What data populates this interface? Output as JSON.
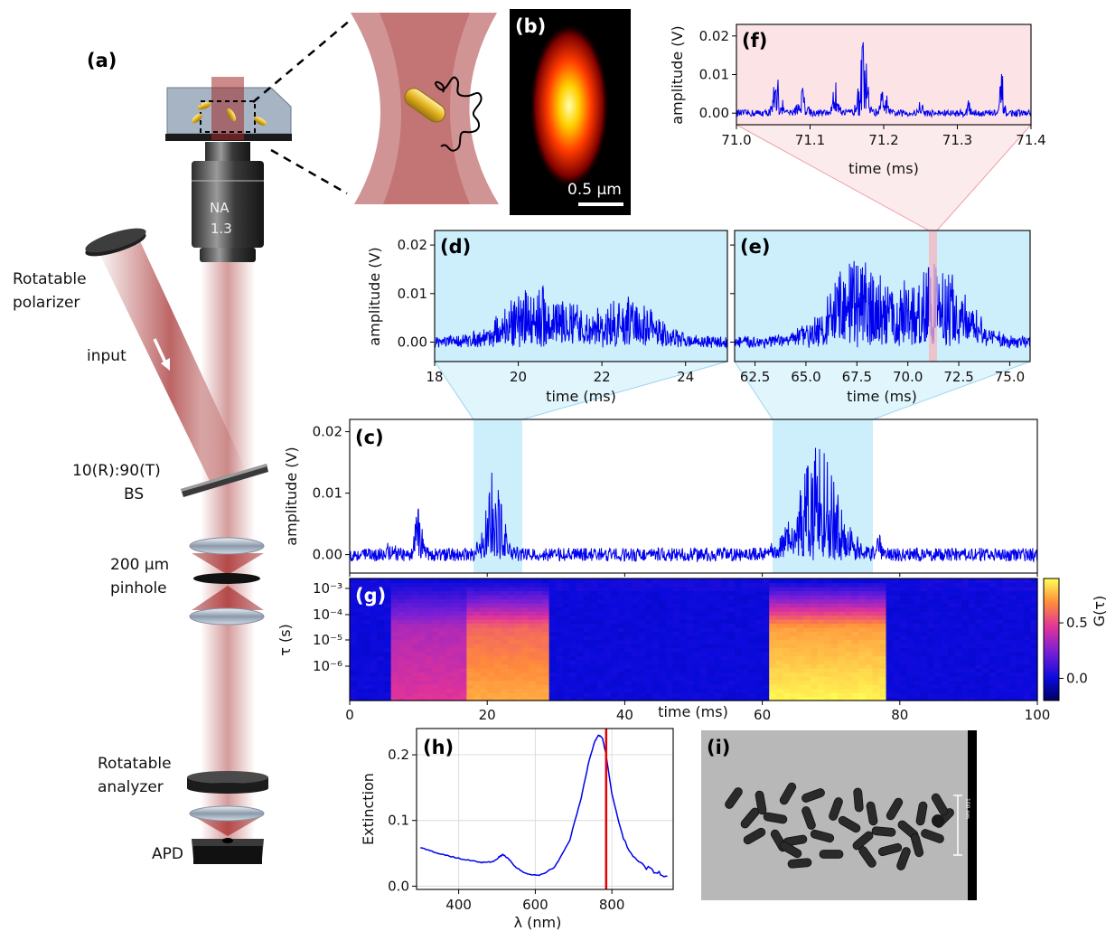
{
  "panels": {
    "a": "(a)",
    "b": "(b)",
    "c": "(c)",
    "d": "(d)",
    "e": "(e)",
    "f": "(f)",
    "g": "(g)",
    "h": "(h)",
    "i": "(i)"
  },
  "setup": {
    "objective_na": "NA",
    "objective_val": "1.3",
    "rot_polarizer": [
      "Rotatable",
      "polarizer"
    ],
    "input": "input",
    "bs": [
      "10(R):90(T)",
      "BS"
    ],
    "pinhole": [
      "200 μm",
      "pinhole"
    ],
    "rot_analyzer": [
      "Rotatable",
      "analyzer"
    ],
    "apd": "APD"
  },
  "psf": {
    "scalebar_label": "0.5 μm"
  },
  "tem": {
    "scalebar_label": "100 nm"
  },
  "colors": {
    "trace": "#0000ee",
    "highlight_blue": "#cdeefb",
    "highlight_pink": "#fbe3e6",
    "marker_red": "#e60000",
    "beam": "#a32a2a"
  },
  "chart_data": [
    {
      "id": "f",
      "type": "line",
      "title": "",
      "xlabel": "time (ms)",
      "ylabel": "amplitude (V)",
      "xlim": [
        71.0,
        71.4
      ],
      "ylim": [
        -0.003,
        0.023
      ],
      "xticks": [
        "71.0",
        "71.1",
        "71.2",
        "71.3",
        "71.4"
      ],
      "yticks": [
        "0.00",
        "0.01",
        "0.02"
      ],
      "background": "pink",
      "bursts": [
        [
          71.055,
          0.011,
          0.01
        ],
        [
          71.09,
          0.008,
          0.012
        ],
        [
          71.135,
          0.009,
          0.008
        ],
        [
          71.172,
          0.019,
          0.012
        ],
        [
          71.2,
          0.008,
          0.008
        ],
        [
          71.25,
          0.005,
          0.005
        ],
        [
          71.315,
          0.004,
          0.005
        ],
        [
          71.36,
          0.011,
          0.005
        ]
      ]
    },
    {
      "id": "d",
      "type": "line",
      "title": "",
      "xlabel": "time (ms)",
      "ylabel": "amplitude (V)",
      "xlim": [
        18,
        25
      ],
      "ylim": [
        -0.004,
        0.023
      ],
      "xticks": [
        "18",
        "20",
        "22",
        "24"
      ],
      "yticks": [
        "0.00",
        "0.01",
        "0.02"
      ],
      "background": "blue",
      "bursts": [
        [
          20.5,
          0.012,
          1.6
        ],
        [
          22.7,
          0.009,
          1.3
        ]
      ]
    },
    {
      "id": "e",
      "type": "line",
      "title": "",
      "xlabel": "time (ms)",
      "ylabel": "",
      "xlim": [
        61.5,
        76.0
      ],
      "ylim": [
        -0.004,
        0.023
      ],
      "xticks": [
        "62.5",
        "65.0",
        "67.5",
        "70.0",
        "72.5",
        "75.0"
      ],
      "yticks": [],
      "background": "blue",
      "bursts": [
        [
          67.5,
          0.017,
          3.0
        ],
        [
          71.5,
          0.016,
          2.8
        ]
      ]
    },
    {
      "id": "c",
      "type": "line",
      "title": "",
      "xlabel": "",
      "ylabel": "amplitude (V)",
      "xlim": [
        0,
        100
      ],
      "ylim": [
        -0.003,
        0.022
      ],
      "yticks": [
        "0.00",
        "0.01",
        "0.02"
      ],
      "highlights": [
        [
          18,
          25
        ],
        [
          61.5,
          76
        ]
      ],
      "bursts": [
        [
          10,
          0.009,
          1.0
        ],
        [
          21,
          0.013,
          2.5
        ],
        [
          68,
          0.018,
          6.0
        ],
        [
          77,
          0.004,
          0.6
        ],
        [
          6,
          0.002,
          1.0
        ]
      ]
    },
    {
      "id": "g",
      "type": "heatmap",
      "title": "",
      "xlabel": "time (ms)",
      "ylabel": "τ (s)",
      "colorbar_label": "G(τ)",
      "xlim": [
        0,
        100
      ],
      "xticks": [
        "0",
        "20",
        "40",
        "60",
        "80",
        "100"
      ],
      "yticks": [
        "10⁻³",
        "10⁻⁴",
        "10⁻⁵",
        "10⁻⁶"
      ],
      "colorbar_ticks": [
        "0.0",
        "0.5"
      ],
      "clim": [
        -0.2,
        0.9
      ],
      "regions": [
        [
          6,
          17,
          0.45
        ],
        [
          17,
          29,
          0.72
        ],
        [
          61,
          78,
          0.88
        ]
      ]
    },
    {
      "id": "h",
      "type": "line",
      "title": "",
      "xlabel": "λ (nm)",
      "ylabel": "Extinction",
      "xlim": [
        290,
        960
      ],
      "ylim": [
        -0.005,
        0.24
      ],
      "xticks": [
        "400",
        "600",
        "800"
      ],
      "yticks": [
        "0.0",
        "0.1",
        "0.2"
      ],
      "x": [
        300,
        340,
        380,
        420,
        460,
        490,
        505,
        515,
        530,
        550,
        580,
        610,
        650,
        690,
        720,
        740,
        755,
        765,
        775,
        785,
        800,
        830,
        870,
        910,
        945
      ],
      "y": [
        0.059,
        0.051,
        0.045,
        0.04,
        0.036,
        0.037,
        0.044,
        0.048,
        0.042,
        0.028,
        0.018,
        0.016,
        0.028,
        0.07,
        0.135,
        0.19,
        0.22,
        0.23,
        0.226,
        0.2,
        0.14,
        0.07,
        0.035,
        0.022,
        0.015
      ],
      "marker_x": 785
    }
  ]
}
